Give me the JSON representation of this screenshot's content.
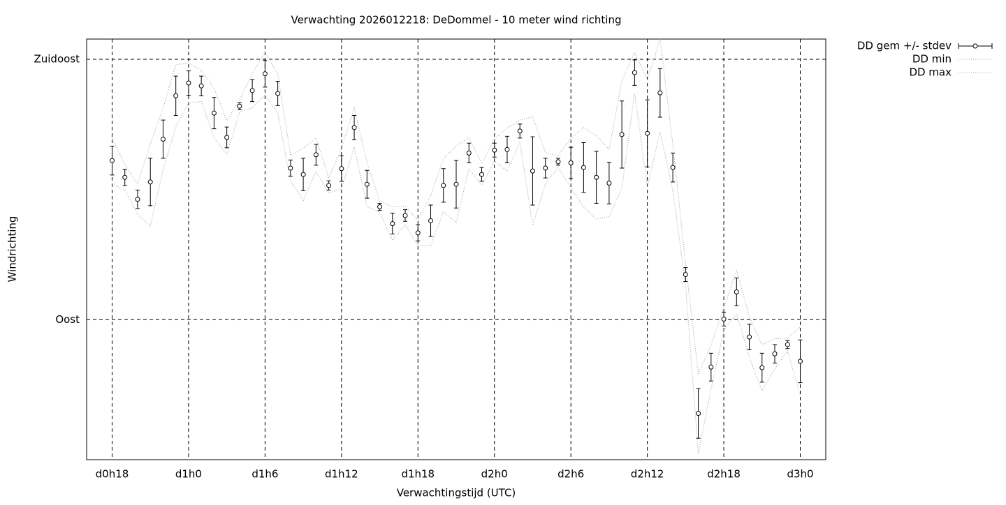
{
  "chart_data": {
    "type": "errorbar",
    "title": "Verwachting 2026012218: DeDommel - 10 meter wind richting",
    "xlabel": "Verwachtingstijd (UTC)",
    "ylabel": "Windrichting",
    "x": [
      18,
      19,
      20,
      21,
      22,
      23,
      24,
      25,
      26,
      27,
      28,
      29,
      30,
      31,
      32,
      33,
      34,
      35,
      36,
      37,
      38,
      39,
      40,
      41,
      42,
      43,
      44,
      45,
      46,
      47,
      48,
      49,
      50,
      51,
      52,
      53,
      54,
      55,
      56,
      57,
      58,
      59,
      60,
      61,
      62,
      63,
      64,
      65,
      66,
      67,
      68,
      69,
      70,
      71,
      72
    ],
    "xlim": [
      16,
      74
    ],
    "xticks": [
      {
        "value": 18,
        "label": "d0h18"
      },
      {
        "value": 24,
        "label": "d1h0"
      },
      {
        "value": 30,
        "label": "d1h6"
      },
      {
        "value": 36,
        "label": "d1h12"
      },
      {
        "value": 42,
        "label": "d1h18"
      },
      {
        "value": 48,
        "label": "d2h0"
      },
      {
        "value": 54,
        "label": "d2h6"
      },
      {
        "value": 60,
        "label": "d2h12"
      },
      {
        "value": 66,
        "label": "d2h18"
      },
      {
        "value": 72,
        "label": "d3h0"
      }
    ],
    "ylim": [
      65.8,
      138.5
    ],
    "yticks": [
      {
        "value": 90,
        "label": "Oost"
      },
      {
        "value": 135,
        "label": "Zuidoost"
      }
    ],
    "grid": true,
    "legend": "outside-top-right",
    "series": [
      {
        "name": "DD gem +/- stdev",
        "color": "#000000",
        "values": [
          117.5,
          114.6,
          110.8,
          113.8,
          121.2,
          128.7,
          130.9,
          130.4,
          125.7,
          121.5,
          126.9,
          129.6,
          132.5,
          129.1,
          116.2,
          115.1,
          118.5,
          113.2,
          116.1,
          123.2,
          113.4,
          109.5,
          106.6,
          108.0,
          105.0,
          107.1,
          113.2,
          113.4,
          118.8,
          115.1,
          119.3,
          119.4,
          122.6,
          115.7,
          116.2,
          117.3,
          117.1,
          116.3,
          114.6,
          113.6,
          122.0,
          132.7,
          122.2,
          129.2,
          116.3,
          97.8,
          73.8,
          81.8,
          90.1,
          94.8,
          87.0,
          81.7,
          84.1,
          85.7,
          82.8
        ],
        "errors": [
          2.5,
          1.4,
          1.6,
          4.1,
          3.3,
          3.4,
          2.1,
          1.7,
          2.7,
          1.8,
          0.6,
          1.9,
          2.3,
          2.1,
          1.4,
          2.8,
          1.8,
          0.8,
          2.2,
          2.1,
          2.4,
          0.6,
          1.8,
          1.0,
          1.4,
          2.7,
          2.9,
          4.1,
          1.7,
          1.2,
          1.2,
          2.3,
          1.2,
          5.9,
          1.7,
          0.6,
          2.7,
          4.3,
          4.5,
          3.6,
          5.8,
          2.2,
          5.8,
          4.2,
          2.5,
          1.2,
          4.3,
          2.4,
          1.2,
          2.4,
          2.2,
          2.5,
          1.6,
          0.7,
          3.7
        ]
      },
      {
        "name": "DD min",
        "color": "#a0a0a0",
        "values": [
          113.5,
          112.4,
          108.2,
          106.2,
          115.9,
          123.3,
          127.5,
          127.7,
          121.4,
          118.6,
          125.9,
          126.6,
          128.8,
          125.7,
          114.0,
          110.6,
          115.6,
          111.9,
          112.6,
          119.8,
          109.6,
          108.5,
          103.7,
          106.4,
          102.8,
          102.8,
          108.6,
          106.8,
          116.1,
          113.2,
          117.4,
          115.7,
          120.7,
          106.3,
          113.5,
          116.3,
          112.8,
          109.4,
          107.4,
          107.8,
          112.7,
          129.2,
          112.9,
          122.5,
          112.3,
          95.9,
          66.9,
          78.0,
          88.2,
          91.0,
          83.5,
          77.7,
          81.5,
          84.6,
          76.9
        ]
      },
      {
        "name": "DD max",
        "color": "#a0a0a0",
        "values": [
          121.5,
          116.8,
          113.4,
          120.4,
          126.5,
          134.1,
          134.3,
          133.1,
          130.0,
          124.4,
          127.9,
          132.6,
          136.2,
          132.5,
          118.4,
          119.6,
          121.4,
          114.5,
          119.6,
          126.6,
          117.2,
          110.5,
          109.5,
          109.6,
          107.2,
          111.4,
          117.8,
          120.0,
          121.5,
          117.0,
          121.2,
          123.1,
          124.5,
          125.1,
          118.9,
          118.3,
          121.4,
          123.2,
          121.8,
          119.4,
          131.3,
          136.2,
          131.5,
          138.5,
          120.3,
          99.7,
          80.7,
          85.6,
          92.0,
          98.6,
          90.5,
          85.7,
          86.7,
          86.8,
          88.7
        ]
      }
    ]
  }
}
